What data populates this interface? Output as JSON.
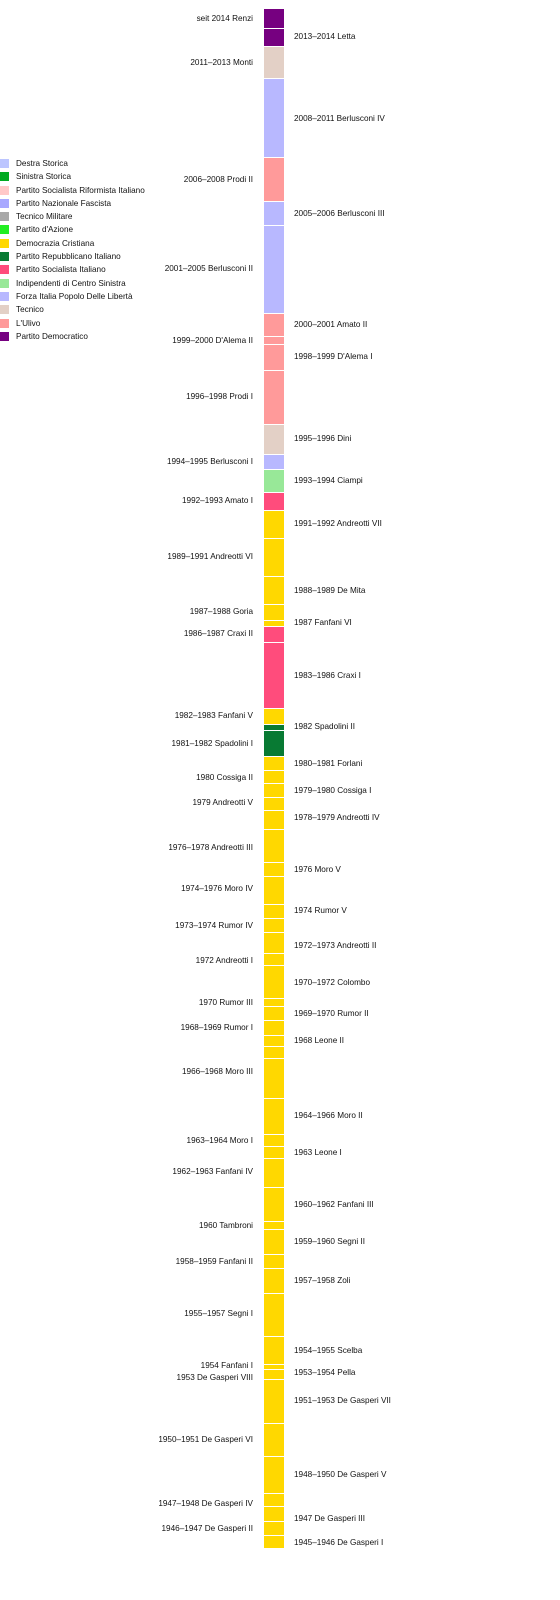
{
  "legend": [
    {
      "party": "Destra Storica",
      "color": "#bcc5ff"
    },
    {
      "party": "Sinistra Storica",
      "color": "#00aa22"
    },
    {
      "party": "Partito Socialista Riformista Italiano",
      "color": "#ffc8c8"
    },
    {
      "party": "Partito Nazionale Fascista",
      "color": "#a8a8ff"
    },
    {
      "party": "Tecnico Militare",
      "color": "#a8a8a8"
    },
    {
      "party": "Partito d'Azione",
      "color": "#22ee22"
    },
    {
      "party": "Democrazia Cristiana",
      "color": "#ffd800"
    },
    {
      "party": "Partito Repubblicano Italiano",
      "color": "#087a33"
    },
    {
      "party": "Partito Socialista Italiano",
      "color": "#ff4c7c"
    },
    {
      "party": "Indipendenti di Centro Sinistra",
      "color": "#98e898"
    },
    {
      "party": "Forza Italia Popolo Delle Libertà",
      "color": "#b8b8ff"
    },
    {
      "party": "Tecnico",
      "color": "#e3d0c6"
    },
    {
      "party": "L'Ulivo",
      "color": "#ff9a9a"
    },
    {
      "party": "Partito Democratico",
      "color": "#760080"
    }
  ],
  "governments": [
    {
      "label": "seit 2014 Renzi",
      "party": "Partito Democratico",
      "side": "left",
      "color": "#760080"
    },
    {
      "label": "2013–2014 Letta",
      "party": "Partito Democratico",
      "side": "right",
      "color": "#760080"
    },
    {
      "label": "2011–2013 Monti",
      "party": "Tecnico",
      "side": "left",
      "color": "#e3d0c6"
    },
    {
      "label": "2008–2011 Berlusconi IV",
      "party": "Forza Italia Popolo Delle Libertà",
      "side": "right",
      "color": "#b8b8ff"
    },
    {
      "label": "2006–2008 Prodi II",
      "party": "L'Ulivo",
      "side": "left",
      "color": "#ff9a9a"
    },
    {
      "label": "2005–2006 Berlusconi III",
      "party": "Forza Italia Popolo Delle Libertà",
      "side": "right",
      "color": "#b8b8ff"
    },
    {
      "label": "2001–2005 Berlusconi II",
      "party": "Forza Italia Popolo Delle Libertà",
      "side": "left",
      "color": "#b8b8ff"
    },
    {
      "label": "2000–2001 Amato II",
      "party": "L'Ulivo",
      "side": "right",
      "color": "#ff9a9a"
    },
    {
      "label": "1999–2000 D'Alema II",
      "party": "L'Ulivo",
      "side": "left",
      "color": "#ff9a9a"
    },
    {
      "label": "1998–1999 D'Alema I",
      "party": "L'Ulivo",
      "side": "right",
      "color": "#ff9a9a"
    },
    {
      "label": "1996–1998 Prodi I",
      "party": "L'Ulivo",
      "side": "left",
      "color": "#ff9a9a"
    },
    {
      "label": "1995–1996 Dini",
      "party": "Tecnico",
      "side": "right",
      "color": "#e3d0c6"
    },
    {
      "label": "1994–1995 Berlusconi I",
      "party": "Forza Italia Popolo Delle Libertà",
      "side": "left",
      "color": "#b8b8ff"
    },
    {
      "label": "1993–1994 Ciampi",
      "party": "Indipendenti di Centro Sinistra",
      "side": "right",
      "color": "#98e898"
    },
    {
      "label": "1992–1993 Amato I",
      "party": "Partito Socialista Italiano",
      "side": "left",
      "color": "#ff4c7c"
    },
    {
      "label": "1991–1992 Andreotti VII",
      "party": "Democrazia Cristiana",
      "side": "right",
      "color": "#ffd800"
    },
    {
      "label": "1989–1991 Andreotti VI",
      "party": "Democrazia Cristiana",
      "side": "left",
      "color": "#ffd800"
    },
    {
      "label": "1988–1989 De Mita",
      "party": "Democrazia Cristiana",
      "side": "right",
      "color": "#ffd800"
    },
    {
      "label": "1987–1988 Goria",
      "party": "Democrazia Cristiana",
      "side": "left",
      "color": "#ffd800"
    },
    {
      "label": "1987 Fanfani VI",
      "party": "Democrazia Cristiana",
      "side": "right",
      "color": "#ffd800"
    },
    {
      "label": "1986–1987 Craxi II",
      "party": "Partito Socialista Italiano",
      "side": "left",
      "color": "#ff4c7c"
    },
    {
      "label": "1983–1986 Craxi I",
      "party": "Partito Socialista Italiano",
      "side": "right",
      "color": "#ff4c7c"
    },
    {
      "label": "1982–1983 Fanfani V",
      "party": "Democrazia Cristiana",
      "side": "left",
      "color": "#ffd800"
    },
    {
      "label": "1982 Spadolini II",
      "party": "Partito Repubblicano Italiano",
      "side": "right",
      "color": "#087a33"
    },
    {
      "label": "1981–1982 Spadolini I",
      "party": "Partito Repubblicano Italiano",
      "side": "left",
      "color": "#087a33"
    },
    {
      "label": "1980–1981 Forlani",
      "party": "Democrazia Cristiana",
      "side": "right",
      "color": "#ffd800"
    },
    {
      "label": "1980 Cossiga II",
      "party": "Democrazia Cristiana",
      "side": "left",
      "color": "#ffd800"
    },
    {
      "label": "1979–1980 Cossiga I",
      "party": "Democrazia Cristiana",
      "side": "right",
      "color": "#ffd800"
    },
    {
      "label": "1979 Andreotti V",
      "party": "Democrazia Cristiana",
      "side": "left",
      "color": "#ffd800"
    },
    {
      "label": "1978–1979 Andreotti IV",
      "party": "Democrazia Cristiana",
      "side": "right",
      "color": "#ffd800"
    },
    {
      "label": "1976–1978 Andreotti III",
      "party": "Democrazia Cristiana",
      "side": "left",
      "color": "#ffd800"
    },
    {
      "label": "1976 Moro V",
      "party": "Democrazia Cristiana",
      "side": "right",
      "color": "#ffd800"
    },
    {
      "label": "1974–1976 Moro IV",
      "party": "Democrazia Cristiana",
      "side": "left",
      "color": "#ffd800"
    },
    {
      "label": "1974 Rumor V",
      "party": "Democrazia Cristiana",
      "side": "right",
      "color": "#ffd800"
    },
    {
      "label": "1973–1974 Rumor IV",
      "party": "Democrazia Cristiana",
      "side": "left",
      "color": "#ffd800"
    },
    {
      "label": "1972–1973 Andreotti II",
      "party": "Democrazia Cristiana",
      "side": "right",
      "color": "#ffd800"
    },
    {
      "label": "1972 Andreotti I",
      "party": "Democrazia Cristiana",
      "side": "left",
      "color": "#ffd800"
    },
    {
      "label": "1970–1972 Colombo",
      "party": "Democrazia Cristiana",
      "side": "right",
      "color": "#ffd800"
    },
    {
      "label": "1970 Rumor III",
      "party": "Democrazia Cristiana",
      "side": "left",
      "color": "#ffd800"
    },
    {
      "label": "1969–1970 Rumor II",
      "party": "Democrazia Cristiana",
      "side": "right",
      "color": "#ffd800"
    },
    {
      "label": "1968–1969 Rumor I",
      "party": "Democrazia Cristiana",
      "side": "left",
      "color": "#ffd800"
    },
    {
      "label": "1968 Leone II",
      "party": "Democrazia Cristiana",
      "side": "right",
      "color": "#ffd800"
    },
    {
      "label": "1966–1968 Moro III",
      "party": "Democrazia Cristiana",
      "side": "left",
      "color": "#ffd800"
    },
    {
      "label": "1964–1966 Moro II",
      "party": "Democrazia Cristiana",
      "side": "right",
      "color": "#ffd800"
    },
    {
      "label": "1963–1964 Moro I",
      "party": "Democrazia Cristiana",
      "side": "left",
      "color": "#ffd800"
    },
    {
      "label": "1963 Leone I",
      "party": "Democrazia Cristiana",
      "side": "right",
      "color": "#ffd800"
    },
    {
      "label": "1962–1963 Fanfani IV",
      "party": "Democrazia Cristiana",
      "side": "left",
      "color": "#ffd800"
    },
    {
      "label": "1960–1962 Fanfani III",
      "party": "Democrazia Cristiana",
      "side": "right",
      "color": "#ffd800"
    },
    {
      "label": "1960 Tambroni",
      "party": "Democrazia Cristiana",
      "side": "left",
      "color": "#ffd800"
    },
    {
      "label": "1959–1960 Segni II",
      "party": "Democrazia Cristiana",
      "side": "right",
      "color": "#ffd800"
    },
    {
      "label": "1958–1959 Fanfani II",
      "party": "Democrazia Cristiana",
      "side": "left",
      "color": "#ffd800"
    },
    {
      "label": "1957–1958 Zoli",
      "party": "Democrazia Cristiana",
      "side": "right",
      "color": "#ffd800"
    },
    {
      "label": "1955–1957 Segni I",
      "party": "Democrazia Cristiana",
      "side": "left",
      "color": "#ffd800"
    },
    {
      "label": "1954–1955 Scelba",
      "party": "Democrazia Cristiana",
      "side": "right",
      "color": "#ffd800"
    },
    {
      "label": "1954 Fanfani I",
      "party": "Democrazia Cristiana",
      "side": "left",
      "color": "#ffd800"
    },
    {
      "label": "1953–1954 Pella",
      "party": "Democrazia Cristiana",
      "side": "right",
      "color": "#ffd800"
    },
    {
      "label": "1953 De Gasperi VIII",
      "party": "Democrazia Cristiana",
      "side": "left",
      "color": "#ffd800"
    },
    {
      "label": "1951–1953 De Gasperi VII",
      "party": "Democrazia Cristiana",
      "side": "right",
      "color": "#ffd800"
    },
    {
      "label": "1950–1951 De Gasperi VI",
      "party": "Democrazia Cristiana",
      "side": "left",
      "color": "#ffd800"
    },
    {
      "label": "1948–1950 De Gasperi V",
      "party": "Democrazia Cristiana",
      "side": "right",
      "color": "#ffd800"
    },
    {
      "label": "1947–1948 De Gasperi IV",
      "party": "Democrazia Cristiana",
      "side": "left",
      "color": "#ffd800"
    },
    {
      "label": "1947 De Gasperi III",
      "party": "Democrazia Cristiana",
      "side": "right",
      "color": "#ffd800"
    },
    {
      "label": "1946–1947 De Gasperi II",
      "party": "Democrazia Cristiana",
      "side": "left",
      "color": "#ffd800"
    },
    {
      "label": "1945–1946 De Gasperi I",
      "party": "Democrazia Cristiana",
      "side": "right",
      "color": "#ffd800"
    }
  ]
}
